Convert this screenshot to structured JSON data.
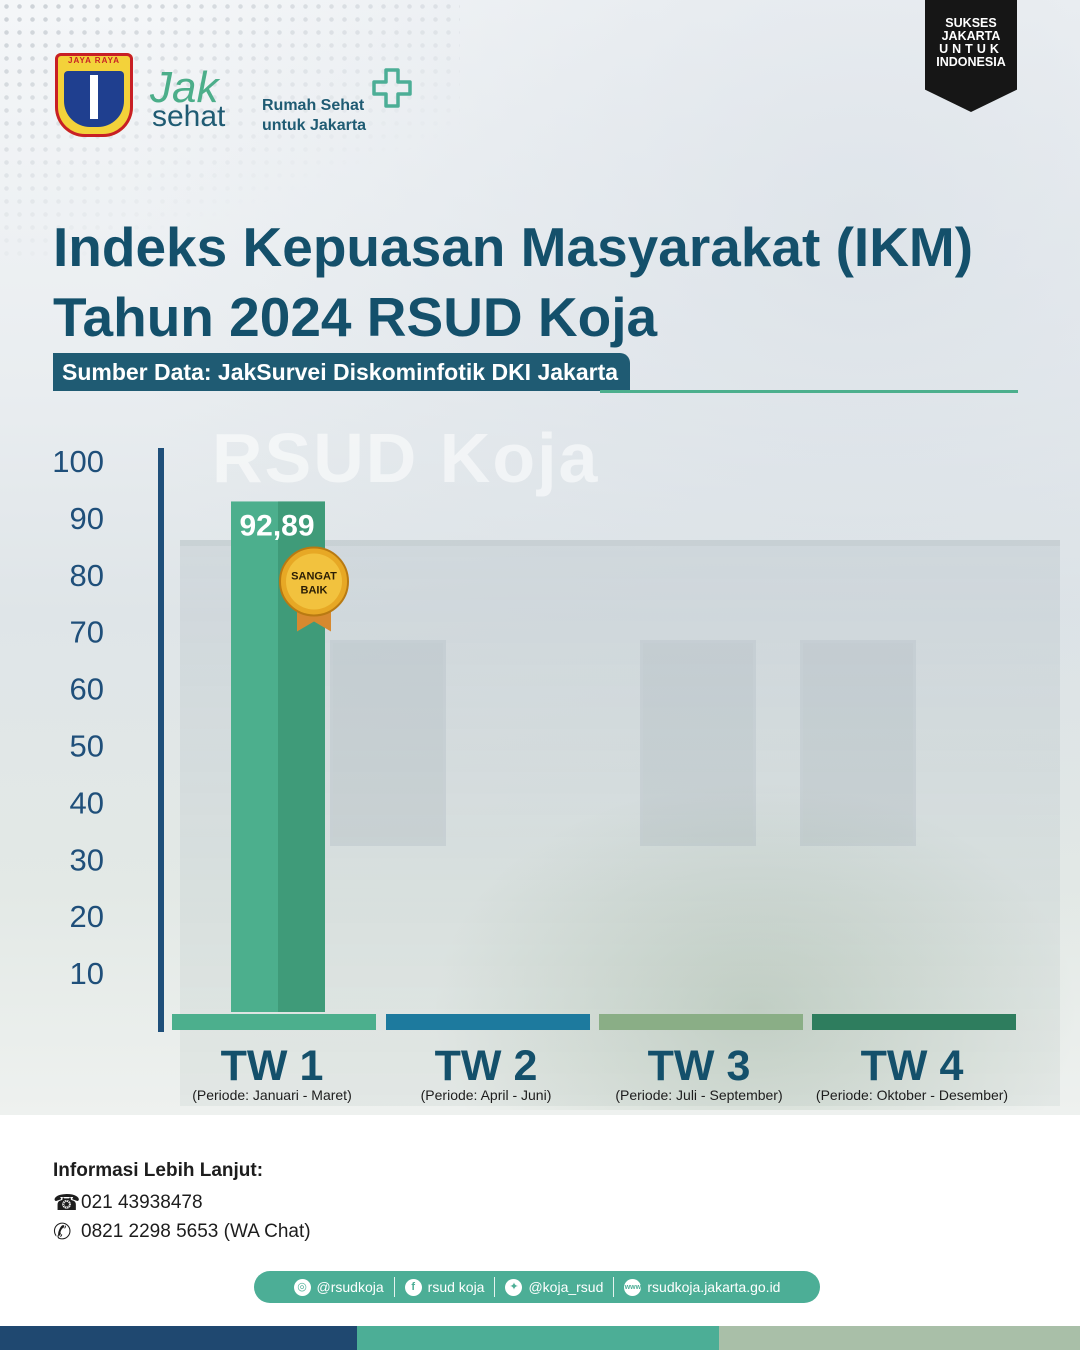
{
  "header": {
    "emblem_text": "JAYA RAYA",
    "logo_jak": "Jak",
    "logo_sehat": "sehat",
    "tagline_line1": "Rumah Sehat",
    "tagline_line2": "untuk Jakarta",
    "badge_lines": [
      "SUKSES",
      "JAKARTA",
      "UNTUK",
      "INDONESIA"
    ]
  },
  "title_line1": "Indeks Kepuasan Masyarakat (IKM)",
  "title_line2": "Tahun 2024 RSUD Koja",
  "source": "Sumber Data: JakSurvei Diskominfotik DKI Jakarta",
  "background_watermark": "RSUD Koja",
  "chart_data": {
    "type": "bar",
    "title": "Indeks Kepuasan Masyarakat (IKM) Tahun 2024 RSUD Koja",
    "categories": [
      "TW 1",
      "TW 2",
      "TW 3",
      "TW 4"
    ],
    "periods": [
      "(Periode: Januari - Maret)",
      "(Periode: April - Juni)",
      "(Periode: Juli - September)",
      "(Periode: Oktober - Desember)"
    ],
    "values": [
      92.89,
      null,
      null,
      null
    ],
    "value_labels": [
      "92,89",
      "",
      "",
      ""
    ],
    "badge": {
      "category": "TW 1",
      "line1": "SANGAT",
      "line2": "BAIK"
    },
    "y_ticks": [
      10,
      20,
      30,
      40,
      50,
      60,
      70,
      80,
      90,
      100
    ],
    "ylim": [
      0,
      100
    ],
    "category_colors": [
      "#4caf8d",
      "#1d7a9e",
      "#8aae86",
      "#2e7d5e"
    ],
    "bar_color": "#4caf8d",
    "bar_shade": "#3f9b79",
    "axis_color": "#1f4f7a",
    "tick_color": "#1f4f7a",
    "category_label_color": "#14506b"
  },
  "footer": {
    "info_title": "Informasi Lebih Lanjut:",
    "phone": "021 43938478",
    "whatsapp": "0821 2298 5653 (WA Chat)",
    "social": [
      {
        "icon": "instagram-icon",
        "glyph": "◎",
        "label": "@rsudkoja"
      },
      {
        "icon": "facebook-icon",
        "glyph": "f",
        "label": "rsud koja"
      },
      {
        "icon": "twitter-icon",
        "glyph": "✦",
        "label": "@koja_rsud"
      },
      {
        "icon": "web-icon",
        "glyph": "www",
        "label": "rsudkoja.jakarta.go.id"
      }
    ],
    "stripe_colors": [
      "#1f4870",
      "#4cae96",
      "#a9bfa8"
    ]
  }
}
